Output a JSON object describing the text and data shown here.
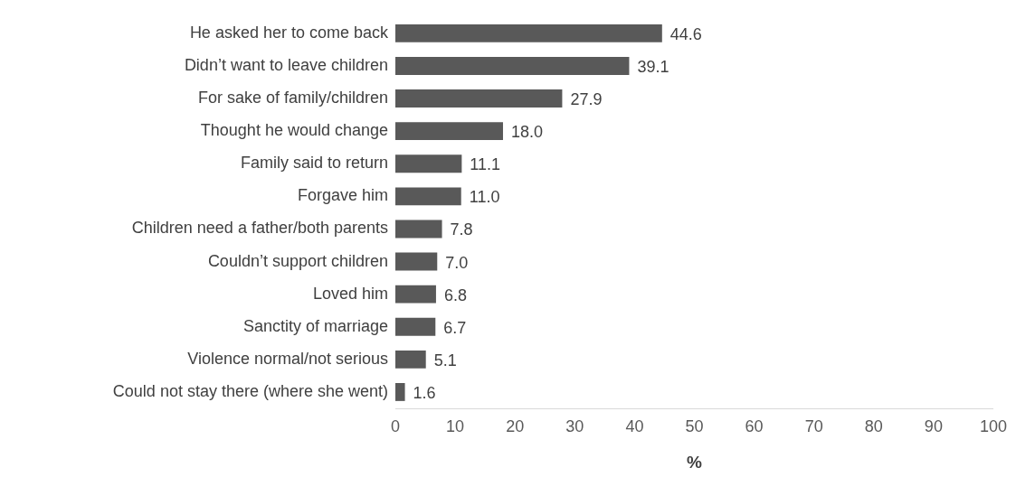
{
  "chart_data": {
    "type": "bar",
    "orientation": "horizontal",
    "categories": [
      "He asked her to come back",
      "Didn’t want to leave children",
      "For sake of family/children",
      "Thought he would change",
      "Family said to return",
      "Forgave him",
      "Children need a father/both parents",
      "Couldn’t support children",
      "Loved him",
      "Sanctity of marriage",
      "Violence normal/not serious",
      "Could not stay there (where she went)"
    ],
    "values": [
      44.6,
      39.1,
      27.9,
      18.0,
      11.1,
      11.0,
      7.8,
      7.0,
      6.8,
      6.7,
      5.1,
      1.6
    ],
    "value_labels": [
      "44.6",
      "39.1",
      "27.9",
      "18.0",
      "11.1",
      "11.0",
      "7.8",
      "7.0",
      "6.8",
      "6.7",
      "5.1",
      "1.6"
    ],
    "color": "#595959",
    "xlim": [
      0,
      100
    ],
    "xticks": [
      0,
      10,
      20,
      30,
      40,
      50,
      60,
      70,
      80,
      90,
      100
    ],
    "xlabel": "%",
    "grid": false,
    "legend": false
  }
}
